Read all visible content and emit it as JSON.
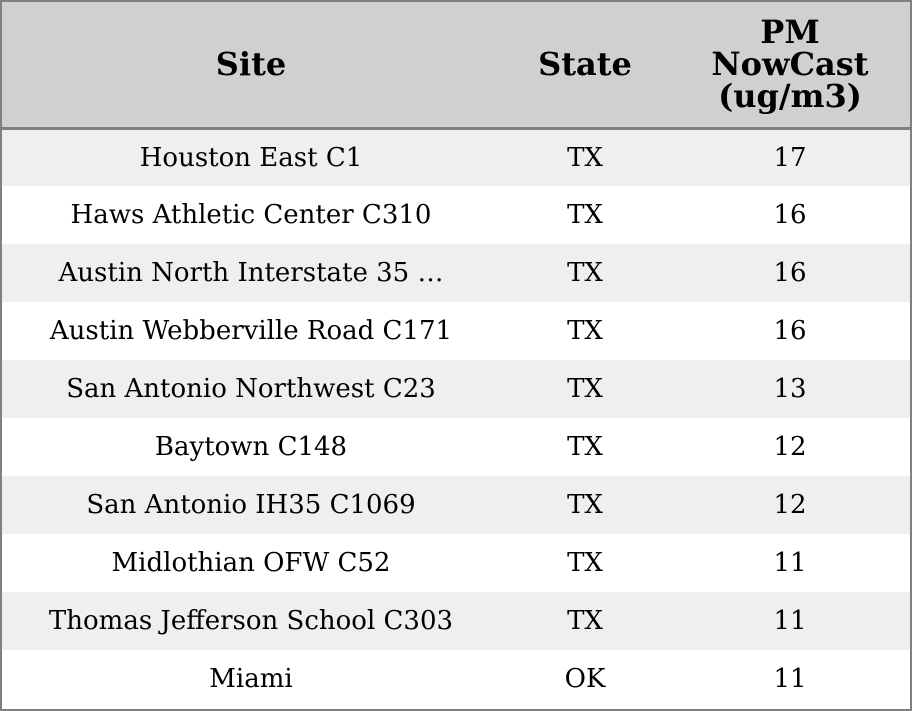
{
  "table": {
    "headers": {
      "site": "Site",
      "state": "State",
      "pm_line1": "PM",
      "pm_line2": "NowCast",
      "pm_line3": "(ug/m3)"
    },
    "rows": [
      {
        "site": "Houston East C1",
        "state": "TX",
        "pm": "17"
      },
      {
        "site": "Haws Athletic Center C310",
        "state": "TX",
        "pm": "16"
      },
      {
        "site": "Austin North Interstate 35 …",
        "state": "TX",
        "pm": "16"
      },
      {
        "site": "Austin Webberville Road C171",
        "state": "TX",
        "pm": "16"
      },
      {
        "site": "San Antonio Northwest C23",
        "state": "TX",
        "pm": "13"
      },
      {
        "site": "Baytown C148",
        "state": "TX",
        "pm": "12"
      },
      {
        "site": "San Antonio IH35 C1069",
        "state": "TX",
        "pm": "12"
      },
      {
        "site": "Midlothian OFW C52",
        "state": "TX",
        "pm": "11"
      },
      {
        "site": "Thomas Jefferson School C303",
        "state": "TX",
        "pm": "11"
      },
      {
        "site": "Miami",
        "state": "OK",
        "pm": "11"
      }
    ]
  },
  "colors": {
    "header_bg": "#d0d0d0",
    "row_alt_bg": "#efefef",
    "row_bg": "#ffffff",
    "border": "#808080"
  }
}
